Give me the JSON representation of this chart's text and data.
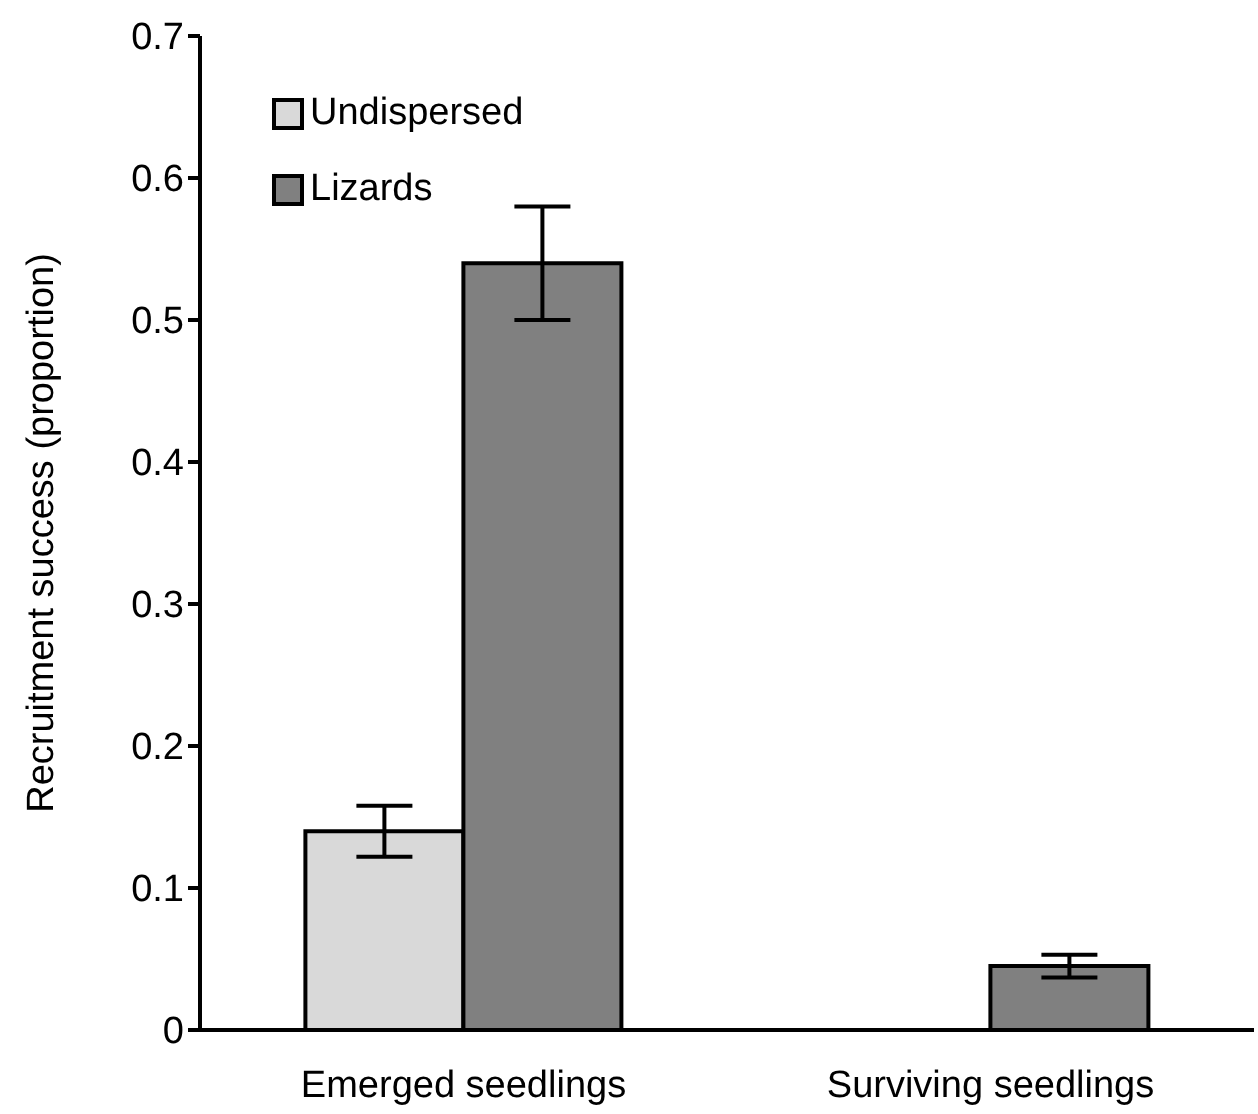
{
  "chart_data": {
    "type": "bar",
    "ylabel": "Recruitment success (proportion)",
    "categories": [
      "Emerged seedlings",
      "Surviving seedlings"
    ],
    "series": [
      {
        "name": "Undispersed",
        "color": "#d9d9d9",
        "values": [
          0.14,
          0
        ],
        "errors": [
          0.018,
          null
        ]
      },
      {
        "name": "Lizards",
        "color": "#808080",
        "values": [
          0.54,
          0.045
        ],
        "errors": [
          0.04,
          0.008
        ]
      }
    ],
    "ylim": [
      0,
      0.7
    ],
    "yticks": [
      0,
      0.1,
      0.2,
      0.3,
      0.4,
      0.5,
      0.6,
      0.7
    ],
    "grid": false,
    "legend": "top left"
  }
}
